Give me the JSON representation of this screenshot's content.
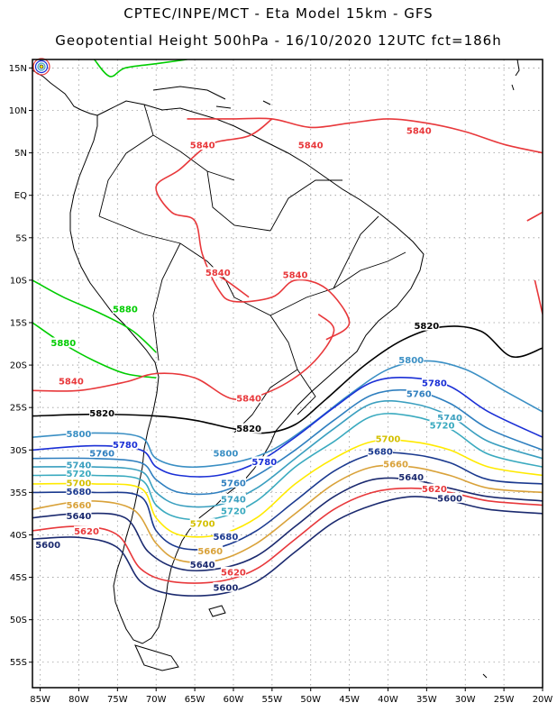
{
  "header": {
    "line1": "CPTEC/INPE/MCT -  Eta Model 15km - GFS",
    "line2": "Geopotential Height 500hPa - 16/10/2020 12UTC fct=186h"
  },
  "axes": {
    "lon_labels": [
      "85W",
      "80W",
      "75W",
      "70W",
      "65W",
      "60W",
      "55W",
      "50W",
      "45W",
      "40W",
      "35W",
      "30W",
      "25W",
      "20W"
    ],
    "lon_values": [
      -85,
      -80,
      -75,
      -70,
      -65,
      -60,
      -55,
      -50,
      -45,
      -40,
      -35,
      -30,
      -25,
      -20
    ],
    "lat_labels": [
      "15N",
      "10N",
      "5N",
      "EQ",
      "5S",
      "10S",
      "15S",
      "20S",
      "25S",
      "30S",
      "35S",
      "40S",
      "45S",
      "50S",
      "55S"
    ],
    "lat_values": [
      15,
      10,
      5,
      0,
      -5,
      -10,
      -15,
      -20,
      -25,
      -30,
      -35,
      -40,
      -45,
      -50,
      -55
    ],
    "lon_range": [
      -86,
      -20
    ],
    "lat_range": [
      -58,
      16
    ],
    "grid": "dotted"
  },
  "contours": [
    {
      "level": "5880",
      "color": "#00cc00",
      "lines": [
        [
          [
            -86,
            -10
          ],
          [
            -82,
            -12
          ],
          [
            -77,
            -14
          ],
          [
            -73,
            -16
          ],
          [
            -70,
            -18.5
          ]
        ],
        [
          [
            -86,
            -15
          ],
          [
            -82,
            -17.5
          ],
          [
            -78,
            -19.5
          ],
          [
            -74,
            -21
          ],
          [
            -70,
            -21.5
          ]
        ],
        [
          [
            -78,
            16
          ],
          [
            -76,
            14
          ],
          [
            -74,
            15
          ],
          [
            -70,
            15.5
          ],
          [
            -66,
            16
          ]
        ]
      ],
      "labels": [
        [
          -74,
          -13.5
        ],
        [
          -82,
          -17.5
        ]
      ]
    },
    {
      "level": "5840",
      "color": "#e8383b",
      "lines": [
        [
          [
            -86,
            -23
          ],
          [
            -80,
            -23
          ],
          [
            -74,
            -22
          ],
          [
            -70,
            -21
          ],
          [
            -65,
            -21.5
          ],
          [
            -60,
            -24
          ],
          [
            -55,
            -23
          ],
          [
            -50,
            -20
          ],
          [
            -47,
            -16
          ],
          [
            -49,
            -14
          ]
        ],
        [
          [
            -55,
            9
          ],
          [
            -58,
            7
          ],
          [
            -63,
            6
          ],
          [
            -67,
            3
          ],
          [
            -70,
            1
          ],
          [
            -68,
            -2
          ],
          [
            -65,
            -3
          ],
          [
            -64,
            -7
          ],
          [
            -62,
            -11
          ],
          [
            -60,
            -12.5
          ],
          [
            -55,
            -12
          ],
          [
            -52,
            -10
          ],
          [
            -48,
            -11
          ],
          [
            -45,
            -15
          ],
          [
            -48,
            -17
          ]
        ],
        [
          [
            -66,
            9
          ],
          [
            -60,
            9
          ],
          [
            -55,
            9
          ],
          [
            -50,
            8
          ],
          [
            -45,
            8.5
          ],
          [
            -40,
            9
          ],
          [
            -35,
            8.5
          ],
          [
            -30,
            7.5
          ],
          [
            -25,
            6
          ],
          [
            -20,
            5
          ]
        ],
        [
          [
            -63,
            -9
          ],
          [
            -61,
            -10
          ],
          [
            -58,
            -12
          ]
        ],
        [
          [
            -21,
            -10
          ],
          [
            -20,
            -14
          ]
        ],
        [
          [
            -22,
            -3
          ],
          [
            -20,
            -2
          ]
        ]
      ],
      "labels": [
        [
          -64,
          5.8
        ],
        [
          -50,
          5.8
        ],
        [
          -36,
          7.5
        ],
        [
          -62,
          -9.2
        ],
        [
          -52,
          -9.5
        ],
        [
          -81,
          -22
        ],
        [
          -58,
          -24
        ]
      ]
    },
    {
      "level": "5820",
      "color": "#000000",
      "lines": [
        [
          [
            -86,
            -26
          ],
          [
            -78,
            -25.8
          ],
          [
            -70,
            -26
          ],
          [
            -65,
            -26.5
          ],
          [
            -60,
            -27.5
          ],
          [
            -56,
            -28
          ],
          [
            -52,
            -27
          ],
          [
            -48,
            -24
          ],
          [
            -43,
            -20
          ],
          [
            -38,
            -17
          ],
          [
            -33,
            -15.5
          ],
          [
            -28,
            -16
          ],
          [
            -24,
            -19
          ],
          [
            -20,
            -18
          ]
        ]
      ],
      "labels": [
        [
          -77,
          -25.8
        ],
        [
          -58,
          -27.6
        ],
        [
          -35,
          -15.5
        ]
      ]
    },
    {
      "level": "5800",
      "color": "#3a8fc4",
      "lines": [
        [
          [
            -86,
            -28.5
          ],
          [
            -78,
            -28
          ],
          [
            -72,
            -28.5
          ],
          [
            -70,
            -31
          ],
          [
            -66,
            -32
          ],
          [
            -60,
            -31.5
          ],
          [
            -55,
            -30
          ],
          [
            -50,
            -27
          ],
          [
            -45,
            -23.5
          ],
          [
            -40,
            -20.5
          ],
          [
            -35,
            -19.5
          ],
          [
            -30,
            -20.5
          ],
          [
            -25,
            -23
          ],
          [
            -20,
            -25.5
          ]
        ]
      ],
      "labels": [
        [
          -80,
          -28.2
        ],
        [
          -61,
          -30.5
        ],
        [
          -37,
          -19.5
        ]
      ]
    },
    {
      "level": "5780",
      "color": "#1a2fd6",
      "lines": [
        [
          [
            -86,
            -30
          ],
          [
            -78,
            -29.5
          ],
          [
            -72,
            -30
          ],
          [
            -70,
            -32
          ],
          [
            -67,
            -33
          ],
          [
            -62,
            -33
          ],
          [
            -57,
            -31.5
          ],
          [
            -52,
            -28.5
          ],
          [
            -47,
            -25
          ],
          [
            -42,
            -22
          ],
          [
            -37,
            -21.5
          ],
          [
            -32,
            -22.5
          ],
          [
            -27,
            -25.5
          ],
          [
            -20,
            -28.5
          ]
        ]
      ],
      "labels": [
        [
          -74,
          -29.5
        ],
        [
          -56,
          -31.5
        ],
        [
          -34,
          -22.2
        ]
      ]
    },
    {
      "level": "5760",
      "color": "#2f7fbf",
      "lines": [
        [
          [
            -86,
            -31
          ],
          [
            -78,
            -31
          ],
          [
            -72,
            -31.5
          ],
          [
            -70,
            -33.5
          ],
          [
            -67,
            -35
          ],
          [
            -62,
            -35
          ],
          [
            -57,
            -33
          ],
          [
            -52,
            -30
          ],
          [
            -47,
            -26.5
          ],
          [
            -42,
            -23.5
          ],
          [
            -37,
            -23
          ],
          [
            -32,
            -24.5
          ],
          [
            -27,
            -27.5
          ],
          [
            -20,
            -30
          ]
        ]
      ],
      "labels": [
        [
          -77,
          -30.5
        ],
        [
          -60,
          -34
        ],
        [
          -36,
          -23.5
        ]
      ]
    },
    {
      "level": "5740",
      "color": "#3a9fbf",
      "lines": [
        [
          [
            -86,
            -32
          ],
          [
            -78,
            -32
          ],
          [
            -72,
            -32.5
          ],
          [
            -70,
            -35
          ],
          [
            -67,
            -36.5
          ],
          [
            -62,
            -36.5
          ],
          [
            -57,
            -34.5
          ],
          [
            -52,
            -31
          ],
          [
            -47,
            -27.5
          ],
          [
            -42,
            -24.5
          ],
          [
            -37,
            -24.5
          ],
          [
            -32,
            -26
          ],
          [
            -27,
            -29
          ],
          [
            -20,
            -31
          ]
        ]
      ],
      "labels": [
        [
          -80,
          -31.9
        ],
        [
          -60,
          -35.9
        ],
        [
          -32,
          -26.3
        ]
      ]
    },
    {
      "level": "5720",
      "color": "#3aaabf",
      "lines": [
        [
          [
            -86,
            -33
          ],
          [
            -78,
            -33
          ],
          [
            -72,
            -33.5
          ],
          [
            -70,
            -36.5
          ],
          [
            -67,
            -38
          ],
          [
            -62,
            -38
          ],
          [
            -57,
            -36
          ],
          [
            -52,
            -32
          ],
          [
            -47,
            -29
          ],
          [
            -42,
            -26
          ],
          [
            -37,
            -26
          ],
          [
            -32,
            -27.5
          ],
          [
            -27,
            -30.5
          ],
          [
            -20,
            -32
          ]
        ]
      ],
      "labels": [
        [
          -80,
          -32.9
        ],
        [
          -60,
          -37.3
        ],
        [
          -33,
          -27.2
        ]
      ]
    },
    {
      "level": "5700",
      "color": "#ffea00",
      "lines": [
        [
          [
            -86,
            -34
          ],
          [
            -78,
            -34
          ],
          [
            -72,
            -34.5
          ],
          [
            -70,
            -38
          ],
          [
            -67,
            -40
          ],
          [
            -62,
            -40
          ],
          [
            -57,
            -38
          ],
          [
            -52,
            -34
          ],
          [
            -47,
            -31
          ],
          [
            -42,
            -29
          ],
          [
            -37,
            -29
          ],
          [
            -32,
            -30
          ],
          [
            -27,
            -32
          ],
          [
            -20,
            -33
          ]
        ]
      ],
      "labels": [
        [
          -80,
          -34
        ],
        [
          -64,
          -38.8
        ],
        [
          -40,
          -28.8
        ]
      ]
    },
    {
      "level": "5680",
      "color": "#1b3a8f",
      "lines": [
        [
          [
            -86,
            -35
          ],
          [
            -78,
            -35
          ],
          [
            -72,
            -35.5
          ],
          [
            -70,
            -39.5
          ],
          [
            -67,
            -41.5
          ],
          [
            -62,
            -41.5
          ],
          [
            -57,
            -39.5
          ],
          [
            -52,
            -36
          ],
          [
            -47,
            -32.5
          ],
          [
            -42,
            -30.5
          ],
          [
            -37,
            -30.5
          ],
          [
            -32,
            -31.5
          ],
          [
            -27,
            -33.5
          ],
          [
            -20,
            -34
          ]
        ]
      ],
      "labels": [
        [
          -80,
          -35
        ],
        [
          -61,
          -40.3
        ],
        [
          -41,
          -30.3
        ]
      ]
    },
    {
      "level": "5660",
      "color": "#d9a23a",
      "lines": [
        [
          [
            -86,
            -37
          ],
          [
            -79,
            -36
          ],
          [
            -73,
            -37
          ],
          [
            -70,
            -41
          ],
          [
            -67,
            -43
          ],
          [
            -62,
            -43
          ],
          [
            -57,
            -41
          ],
          [
            -52,
            -37.5
          ],
          [
            -47,
            -34
          ],
          [
            -42,
            -32
          ],
          [
            -37,
            -32
          ],
          [
            -32,
            -33
          ],
          [
            -27,
            -34.5
          ],
          [
            -20,
            -35
          ]
        ]
      ],
      "labels": [
        [
          -80,
          -36.6
        ],
        [
          -63,
          -42
        ],
        [
          -39,
          -31.8
        ]
      ]
    },
    {
      "level": "5640",
      "color": "#1b2a6f",
      "lines": [
        [
          [
            -86,
            -38
          ],
          [
            -80,
            -37.5
          ],
          [
            -74,
            -38
          ],
          [
            -71,
            -42
          ],
          [
            -67,
            -44
          ],
          [
            -62,
            -44
          ],
          [
            -57,
            -42.5
          ],
          [
            -52,
            -39
          ],
          [
            -47,
            -35.5
          ],
          [
            -42,
            -33.5
          ],
          [
            -37,
            -33.5
          ],
          [
            -32,
            -34.5
          ],
          [
            -27,
            -35.5
          ],
          [
            -20,
            -36
          ]
        ]
      ],
      "labels": [
        [
          -80,
          -37.9
        ],
        [
          -64,
          -43.6
        ],
        [
          -37,
          -33.3
        ]
      ]
    },
    {
      "level": "5620",
      "color": "#e8383b",
      "lines": [
        [
          [
            -86,
            -39.5
          ],
          [
            -80,
            -39
          ],
          [
            -75,
            -40
          ],
          [
            -72,
            -44
          ],
          [
            -68,
            -45.5
          ],
          [
            -62,
            -45.5
          ],
          [
            -57,
            -44
          ],
          [
            -52,
            -40.5
          ],
          [
            -47,
            -37
          ],
          [
            -42,
            -35
          ],
          [
            -37,
            -34.5
          ],
          [
            -32,
            -35
          ],
          [
            -27,
            -36
          ],
          [
            -20,
            -36.5
          ]
        ]
      ],
      "labels": [
        [
          -79,
          -39.7
        ],
        [
          -60,
          -44.5
        ],
        [
          -34,
          -34.7
        ]
      ]
    },
    {
      "level": "5600",
      "color": "#1b2a6f",
      "lines": [
        [
          [
            -86,
            -40.5
          ],
          [
            -80,
            -40.3
          ],
          [
            -75,
            -41.5
          ],
          [
            -72,
            -45.5
          ],
          [
            -68,
            -47
          ],
          [
            -62,
            -47
          ],
          [
            -57,
            -45.5
          ],
          [
            -52,
            -42
          ],
          [
            -47,
            -38.5
          ],
          [
            -42,
            -36.5
          ],
          [
            -37,
            -35.5
          ],
          [
            -32,
            -36
          ],
          [
            -27,
            -37
          ],
          [
            -20,
            -37.5
          ]
        ]
      ],
      "labels": [
        [
          -84,
          -41.3
        ],
        [
          -61,
          -46.3
        ],
        [
          -32,
          -35.8
        ]
      ]
    }
  ]
}
